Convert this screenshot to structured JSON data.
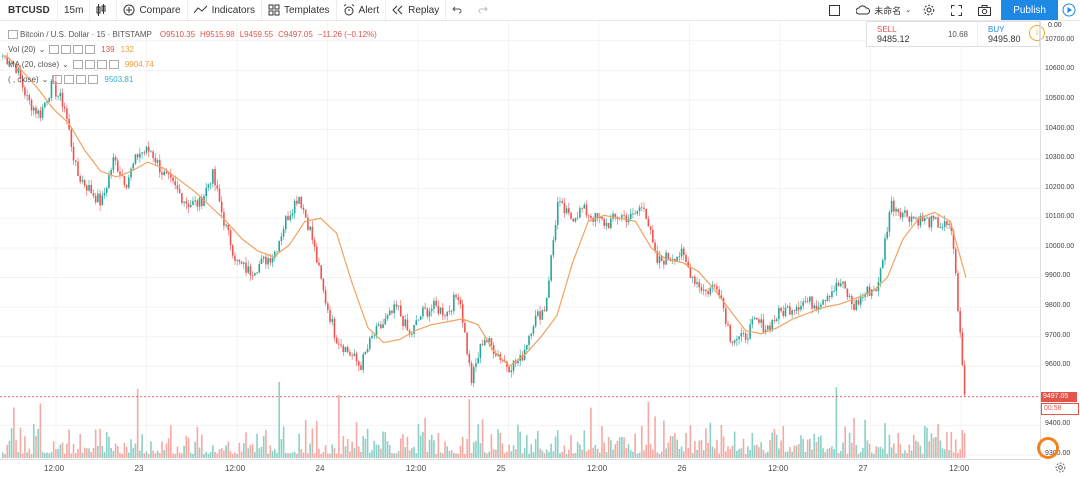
{
  "toolbar": {
    "symbol": "BTCUSD",
    "interval": "15m",
    "compare": "Compare",
    "indicators": "Indicators",
    "templates": "Templates",
    "alert": "Alert",
    "replay": "Replay",
    "cloud_label": "未命名",
    "publish": "Publish"
  },
  "legend": {
    "series_title": "Bitcoin / U.S. Dollar · 15 · BITSTAMP",
    "o": "O9510.35",
    "h": "H9515.98",
    "l": "L9459.55",
    "c": "C9497.05",
    "chg": "−11.26 (−0.12%)",
    "vol_label": "Vol (20)",
    "vol_v1": "139",
    "vol_v2": "132",
    "ma1_label": "MA (20, close)",
    "ma1_val": "9904.74",
    "ma2_label": "(  , close)",
    "ma2_val": "9503.81"
  },
  "trade": {
    "sell_label": "SELL",
    "sell_price": "9485.12",
    "spread": "10.68",
    "buy_label": "BUY",
    "buy_price": "9495.80"
  },
  "right_axis": {
    "top_label": "0.00",
    "ticks": [
      "10700.00",
      "10600.00",
      "10500.00",
      "10400.00",
      "10300.00",
      "10200.00",
      "10100.00",
      "10000.00",
      "9900.00",
      "9800.00",
      "9700.00",
      "9600.00",
      "9400.00",
      "9300.00"
    ],
    "last_price": "9497.05",
    "countdown": "00:58"
  },
  "bottom_axis": {
    "ticks": [
      "12:00",
      "23",
      "12:00",
      "24",
      "12:00",
      "25",
      "12:00",
      "26",
      "12:00",
      "27",
      "12:00"
    ]
  },
  "colors": {
    "up": "#26a69a",
    "down": "#ef5350",
    "ma": "#f0a35e",
    "vol_up": "#8cd0c6",
    "vol_down": "#f5a9a3",
    "accent": "#1e88e5"
  },
  "chart_data": {
    "type": "candlestick",
    "ylim": [
      9300,
      10750
    ],
    "x_labels": [
      "12:00",
      "23",
      "12:00",
      "24",
      "12:00",
      "25",
      "12:00",
      "26",
      "12:00",
      "27",
      "12:00"
    ],
    "close_path": [
      10650,
      10620,
      10500,
      10450,
      10550,
      10480,
      10250,
      10200,
      10150,
      10300,
      10220,
      10320,
      10330,
      10250,
      10200,
      10150,
      10150,
      10250,
      10080,
      9950,
      9920,
      9950,
      9980,
      10100,
      10180,
      10050,
      9850,
      9700,
      9650,
      9600,
      9700,
      9750,
      9800,
      9700,
      9780,
      9800,
      9780,
      9850,
      9550,
      9700,
      9650,
      9600,
      9620,
      9750,
      9800,
      10150,
      10100,
      10130,
      10100,
      10080,
      10110,
      10100,
      10150,
      9950,
      9970,
      9980,
      9900,
      9850,
      9880,
      9700,
      9690,
      9750,
      9730,
      9780,
      9800,
      9820,
      9810,
      9850,
      9880,
      9800,
      9850,
      9870,
      10150,
      10120,
      10100,
      10090,
      10080,
      10060,
      9500
    ],
    "ma20_path": [
      10650,
      10600,
      10540,
      10470,
      10420,
      10330,
      10260,
      10240,
      10260,
      10290,
      10270,
      10230,
      10190,
      10140,
      10090,
      10030,
      9990,
      9970,
      10010,
      10090,
      10100,
      10050,
      9880,
      9730,
      9680,
      9690,
      9720,
      9740,
      9750,
      9760,
      9740,
      9650,
      9600,
      9640,
      9700,
      9770,
      9950,
      10090,
      10110,
      10100,
      10090,
      10000,
      9960,
      9950,
      9920,
      9860,
      9790,
      9720,
      9710,
      9730,
      9760,
      9780,
      9800,
      9810,
      9830,
      9850,
      9900,
      10030,
      10100,
      10120,
      10090,
      9900
    ],
    "last": 9497.05
  }
}
